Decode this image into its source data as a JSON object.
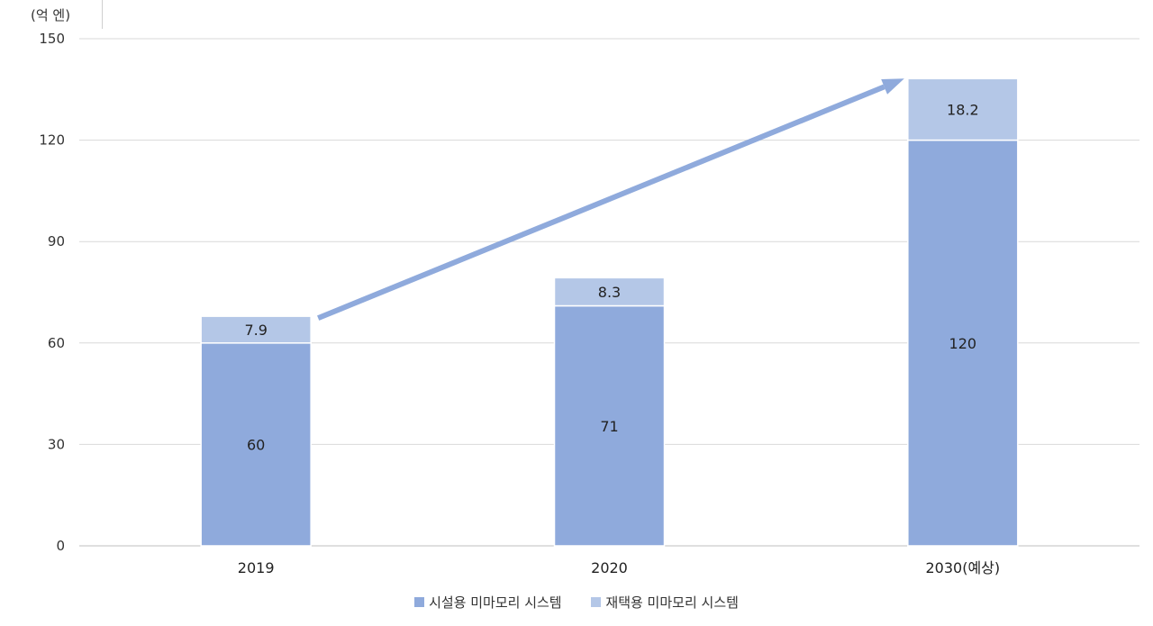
{
  "chart_data": {
    "type": "bar",
    "stacked": true,
    "ylabel": "(억 엔)",
    "categories": [
      "2019",
      "2020",
      "2030(예상)"
    ],
    "yticks": [
      0,
      30,
      60,
      90,
      120,
      150
    ],
    "ylim": [
      0,
      150
    ],
    "grid": true,
    "legend_position": "bottom",
    "series": [
      {
        "name": "시설용 미마모리 시스템",
        "values": [
          60,
          71,
          120
        ],
        "color": "#8faadc"
      },
      {
        "name": "재택용 미마모리 시스템",
        "values": [
          7.9,
          8.3,
          18.2
        ],
        "color": "#b4c7e7"
      }
    ],
    "value_labels": [
      [
        "60",
        "71",
        "120"
      ],
      [
        "7.9",
        "8.3",
        "18.2"
      ]
    ],
    "annotation": "upward trend arrow from 2019 to 2030(예상)",
    "arrow_color": "#8faadc"
  }
}
